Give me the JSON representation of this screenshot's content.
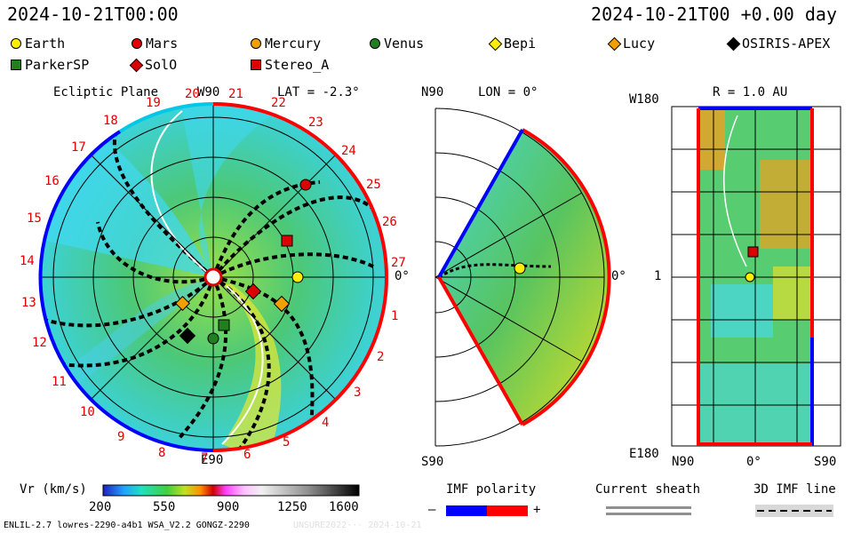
{
  "header": {
    "timestamp_left": "2024-10-21T00:00",
    "timestamp_right": "2024-10-21T00 +0.00 day"
  },
  "legend": [
    {
      "label": "Earth",
      "shape": "circle",
      "color": "#ffee00"
    },
    {
      "label": "Mars",
      "shape": "circle",
      "color": "#dd0000"
    },
    {
      "label": "Mercury",
      "shape": "circle",
      "color": "#f0a000"
    },
    {
      "label": "Venus",
      "shape": "circle",
      "color": "#208020"
    },
    {
      "label": "Bepi",
      "shape": "diamond",
      "color": "#ffee00"
    },
    {
      "label": "Lucy",
      "shape": "diamond",
      "color": "#f0a000"
    },
    {
      "label": "OSIRIS-APEX",
      "shape": "diamond",
      "color": "#000000"
    },
    {
      "label": "ParkerSP",
      "shape": "square",
      "color": "#208020"
    },
    {
      "label": "SolO",
      "shape": "diamond",
      "color": "#dd0000"
    },
    {
      "label": "Stereo_A",
      "shape": "square",
      "color": "#dd0000"
    }
  ],
  "panels": {
    "ecliptic": {
      "title": "Ecliptic Plane",
      "lat": "LAT = -2.3°",
      "top_label": "W90",
      "bottom_label": "E90",
      "right_label": "0°",
      "sector_numbers": [
        "19",
        "20",
        "21",
        "22",
        "23",
        "24",
        "25",
        "26",
        "27",
        "1",
        "2",
        "3",
        "4",
        "5",
        "6",
        "7",
        "8",
        "9",
        "10",
        "11",
        "12",
        "13",
        "14",
        "15",
        "16",
        "17",
        "18"
      ]
    },
    "meridional": {
      "lon": "LON = 0°",
      "top_label": "N90",
      "bottom_label": "S90",
      "right_label": "0°"
    },
    "latlon": {
      "r": "R = 1.0 AU",
      "top_left": "W180",
      "mid_left": "1",
      "bottom_left": "E180",
      "x_left": "N90",
      "x_mid": "0°",
      "x_right": "S90"
    }
  },
  "colorbar": {
    "label": "Vr (km/s)",
    "ticks": [
      "200",
      "550",
      "900",
      "1250",
      "1600"
    ]
  },
  "imf": {
    "title": "IMF polarity",
    "minus": "–",
    "plus": "+"
  },
  "sheath": {
    "title": "Current sheath"
  },
  "imf3d": {
    "title": "3D IMF line"
  },
  "footer": {
    "left": "ENLIL-2.7 lowres-2290-a4b1 WSA_V2.2 GONGZ-2290",
    "right": "UNSURE2022··· 2024-10-21"
  }
}
